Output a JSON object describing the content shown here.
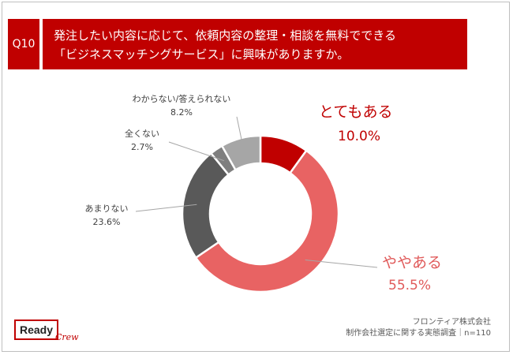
{
  "question": {
    "number": "Q10",
    "line1": "発注したい内容に応じて、依頼内容の整理・相談を無料でできる",
    "line2": "「ビジネスマッチングサービス」に興味がありますか。"
  },
  "chart_data": {
    "type": "pie",
    "donut": true,
    "start": "12 o'clock, clockwise",
    "slices": [
      {
        "label": "とてもある",
        "value": 10.0,
        "display": "10.0%",
        "color": "#c00000"
      },
      {
        "label": "ややある",
        "value": 55.5,
        "display": "55.5%",
        "color": "#e86363"
      },
      {
        "label": "あまりない",
        "value": 23.6,
        "display": "23.6%",
        "color": "#595959"
      },
      {
        "label": "全くない",
        "value": 2.7,
        "display": "2.7%",
        "color": "#7f7f7f"
      },
      {
        "label": "わからない/答えられない",
        "value": 8.2,
        "display": "8.2%",
        "color": "#a6a6a6"
      }
    ]
  },
  "footer": {
    "logo_main": "Ready",
    "logo_sub": "Crew",
    "source_line1": "フロンティア株式会社",
    "source_line2": "制作会社選定に関する実態調査｜n=110"
  }
}
